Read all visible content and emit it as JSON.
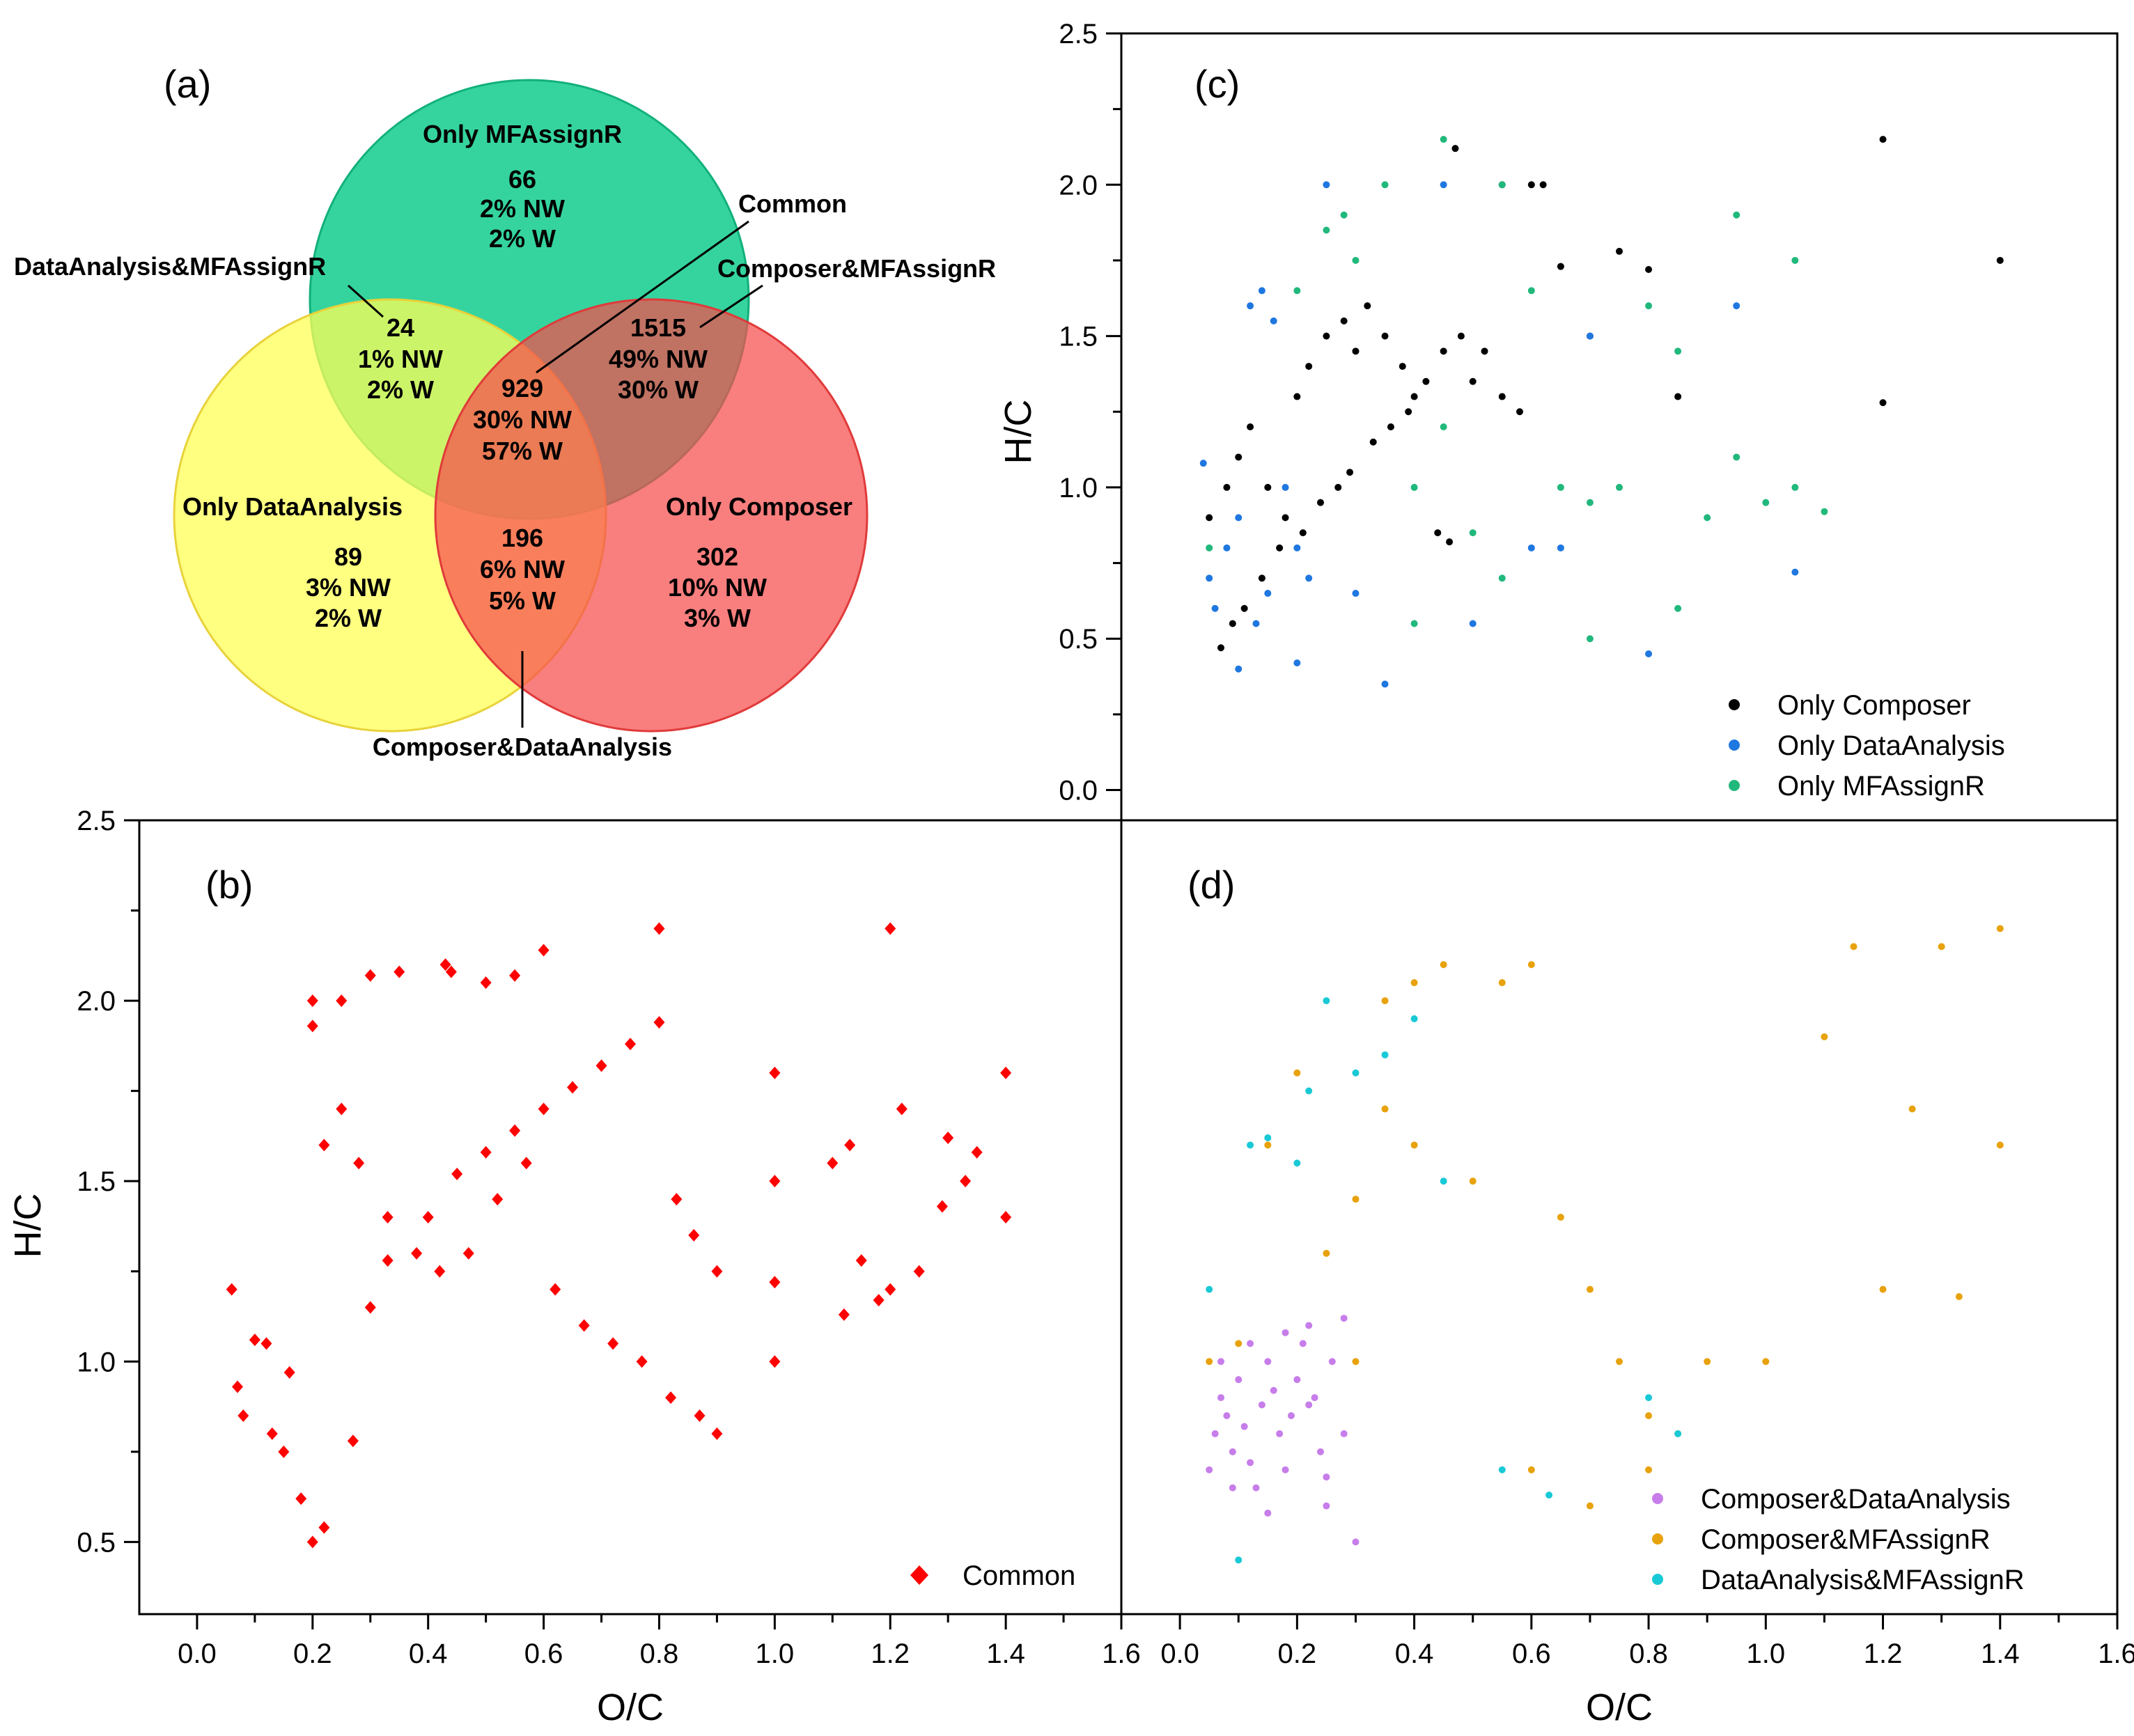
{
  "figure": {
    "panel_labels": [
      "(a)",
      "(b)",
      "(c)",
      "(d)"
    ],
    "x_axis_title": "O/C",
    "y_axis_title": "H/C"
  },
  "venn": {
    "circles": [
      {
        "name": "Only MFAssignR",
        "color": "#1fcf95"
      },
      {
        "name": "Only DataAnalysis",
        "color": "#ffff66"
      },
      {
        "name": "Only Composer",
        "color": "#f97474"
      }
    ],
    "regions": [
      {
        "key": "mf",
        "title": "Only MFAssignR",
        "count": "66",
        "nw": "2% NW",
        "w": "2% W"
      },
      {
        "key": "da_mf",
        "title": "DataAnalysis&MFAssignR",
        "count": "24",
        "nw": "1% NW",
        "w": "2% W"
      },
      {
        "key": "comp_mf",
        "title": "Composer&MFAssignR",
        "count": "1515",
        "nw": "49% NW",
        "w": "30% W"
      },
      {
        "key": "common",
        "title": "Common",
        "count": "929",
        "nw": "30% NW",
        "w": "57% W"
      },
      {
        "key": "da",
        "title": "Only DataAnalysis",
        "count": "89",
        "nw": "3% NW",
        "w": "2% W"
      },
      {
        "key": "comp_da",
        "title": "Composer&DataAnalysis",
        "count": "196",
        "nw": "6% NW",
        "w": "5% W"
      },
      {
        "key": "comp",
        "title": "Only Composer",
        "count": "302",
        "nw": "10% NW",
        "w": "3% W"
      }
    ]
  },
  "chart_data": [
    {
      "panel": "(b)",
      "type": "scatter",
      "xlabel": "O/C",
      "ylabel": "H/C",
      "xlim": [
        -0.1,
        1.6
      ],
      "ylim": [
        0.3,
        2.5
      ],
      "xticks": [
        "0.0",
        "0.2",
        "0.4",
        "0.6",
        "0.8",
        "1.0",
        "1.2",
        "1.4",
        "1.6"
      ],
      "yticks": [
        "0.5",
        "1.0",
        "1.5",
        "2.0",
        "2.5"
      ],
      "legend": "bottom-right",
      "series": [
        {
          "name": "Common",
          "color": "#ff0000",
          "marker": "diamond",
          "x": [
            0.06,
            0.07,
            0.08,
            0.12,
            0.15,
            0.18,
            0.2,
            0.22,
            0.13,
            0.16,
            0.1,
            0.27,
            0.3,
            0.33,
            0.4,
            0.45,
            0.5,
            0.55,
            0.6,
            0.65,
            0.7,
            0.75,
            0.8,
            0.83,
            0.86,
            0.9,
            1.0,
            1.0,
            1.0,
            1.0,
            1.12,
            1.15,
            1.18,
            1.2,
            1.25,
            1.29,
            1.33,
            1.4,
            1.2,
            0.8,
            0.6,
            0.55,
            0.5,
            0.44,
            0.43,
            0.35,
            0.3,
            0.25,
            0.2,
            0.2,
            0.22,
            0.25,
            0.28,
            0.33,
            0.38,
            0.42,
            0.47,
            0.52,
            0.57,
            0.62,
            0.67,
            0.72,
            0.77,
            0.82,
            0.87,
            0.9,
            1.1,
            1.13,
            1.22,
            1.3,
            1.35,
            1.4
          ],
          "y": [
            1.2,
            0.93,
            0.85,
            1.05,
            0.75,
            0.62,
            0.5,
            0.54,
            0.8,
            0.97,
            1.06,
            0.78,
            1.15,
            1.28,
            1.4,
            1.52,
            1.58,
            1.64,
            1.7,
            1.76,
            1.82,
            1.88,
            1.94,
            1.45,
            1.35,
            1.25,
            1.0,
            1.22,
            1.5,
            1.8,
            1.13,
            1.28,
            1.17,
            1.2,
            1.25,
            1.43,
            1.5,
            1.4,
            2.2,
            2.2,
            2.14,
            2.07,
            2.05,
            2.08,
            2.1,
            2.08,
            2.07,
            2.0,
            2.0,
            1.93,
            1.6,
            1.7,
            1.55,
            1.4,
            1.3,
            1.25,
            1.3,
            1.45,
            1.55,
            1.2,
            1.1,
            1.05,
            1.0,
            0.9,
            0.85,
            0.8,
            1.55,
            1.6,
            1.7,
            1.62,
            1.58,
            1.8
          ]
        }
      ]
    },
    {
      "panel": "(c)",
      "type": "scatter",
      "xlabel": "",
      "ylabel": "H/C",
      "xlim": [
        -0.1,
        1.6
      ],
      "ylim": [
        -0.1,
        2.5
      ],
      "yticks": [
        "0.0",
        "0.5",
        "1.0",
        "1.5",
        "2.0",
        "2.5"
      ],
      "legend": "bottom-right",
      "series": [
        {
          "name": "Only Composer",
          "color": "#000000",
          "x": [
            0.05,
            0.08,
            0.1,
            0.12,
            0.15,
            0.18,
            0.2,
            0.22,
            0.25,
            0.28,
            0.3,
            0.32,
            0.35,
            0.38,
            0.4,
            0.42,
            0.45,
            0.48,
            0.5,
            0.52,
            0.55,
            0.58,
            0.6,
            0.62,
            0.65,
            0.7,
            0.75,
            0.8,
            0.85,
            1.2,
            1.2,
            1.4,
            0.47,
            0.55,
            0.07,
            0.09,
            0.11,
            0.14,
            0.17,
            0.21,
            0.24,
            0.27,
            0.29,
            0.33,
            0.36,
            0.39,
            0.44,
            0.46
          ],
          "y": [
            0.9,
            1.0,
            1.1,
            1.2,
            1.0,
            0.9,
            1.3,
            1.4,
            1.5,
            1.55,
            1.45,
            1.6,
            1.5,
            1.4,
            1.3,
            1.35,
            1.45,
            1.5,
            1.35,
            1.45,
            1.3,
            1.25,
            2.0,
            2.0,
            1.73,
            1.5,
            1.78,
            1.72,
            1.3,
            2.15,
            1.28,
            1.75,
            2.12,
            2.0,
            0.47,
            0.55,
            0.6,
            0.7,
            0.8,
            0.85,
            0.95,
            1.0,
            1.05,
            1.15,
            1.2,
            1.25,
            0.85,
            0.82
          ]
        },
        {
          "name": "Only DataAnalysis",
          "color": "#1f77e0",
          "x": [
            0.04,
            0.05,
            0.06,
            0.08,
            0.1,
            0.12,
            0.14,
            0.16,
            0.18,
            0.2,
            0.22,
            0.15,
            0.13,
            0.3,
            0.35,
            0.45,
            0.5,
            0.6,
            0.65,
            0.7,
            0.8,
            0.95,
            1.05,
            0.25,
            0.2,
            0.1
          ],
          "y": [
            1.08,
            0.7,
            0.6,
            0.8,
            0.9,
            1.6,
            1.65,
            1.55,
            1.0,
            0.8,
            0.7,
            0.65,
            0.55,
            0.65,
            0.35,
            2.0,
            0.55,
            0.8,
            0.8,
            1.5,
            0.45,
            1.6,
            0.72,
            2.0,
            0.42,
            0.4
          ]
        },
        {
          "name": "Only MFAssignR",
          "color": "#21b87c",
          "x": [
            0.25,
            0.28,
            0.35,
            0.45,
            0.55,
            0.6,
            0.65,
            0.7,
            0.75,
            0.8,
            0.85,
            0.9,
            0.95,
            1.0,
            1.05,
            1.1,
            0.5,
            0.45,
            0.3,
            0.2,
            0.05,
            0.4,
            0.55,
            0.85,
            0.95,
            1.05,
            0.7,
            0.4
          ],
          "y": [
            1.85,
            1.9,
            2.0,
            2.15,
            2.0,
            1.65,
            1.0,
            0.95,
            1.0,
            1.6,
            0.6,
            0.9,
            1.9,
            0.95,
            1.75,
            0.92,
            0.85,
            1.2,
            1.75,
            1.65,
            0.8,
            0.55,
            0.7,
            1.45,
            1.1,
            1.0,
            0.5,
            1.0
          ]
        }
      ]
    },
    {
      "panel": "(d)",
      "type": "scatter",
      "xlabel": "O/C",
      "ylabel": "",
      "xlim": [
        -0.1,
        1.6
      ],
      "ylim": [
        0.3,
        2.5
      ],
      "xticks": [
        "0.0",
        "0.2",
        "0.4",
        "0.6",
        "0.8",
        "1.0",
        "1.2",
        "1.4",
        "1.6"
      ],
      "legend": "bottom-right",
      "series": [
        {
          "name": "Composer&DataAnalysis",
          "color": "#c77dea",
          "x": [
            0.05,
            0.06,
            0.07,
            0.08,
            0.09,
            0.1,
            0.11,
            0.12,
            0.13,
            0.14,
            0.15,
            0.16,
            0.17,
            0.18,
            0.19,
            0.2,
            0.21,
            0.22,
            0.23,
            0.24,
            0.25,
            0.26,
            0.28,
            0.3,
            0.07,
            0.09,
            0.12,
            0.15,
            0.18,
            0.22,
            0.25,
            0.28
          ],
          "y": [
            0.7,
            0.8,
            0.9,
            0.85,
            0.75,
            0.95,
            0.82,
            0.72,
            0.65,
            0.88,
            1.0,
            0.92,
            0.8,
            0.7,
            0.85,
            0.95,
            1.05,
            1.1,
            0.9,
            0.75,
            0.6,
            1.0,
            0.8,
            0.5,
            1.0,
            0.65,
            1.05,
            0.58,
            1.08,
            0.88,
            0.68,
            1.12
          ]
        },
        {
          "name": "Composer&MFAssignR",
          "color": "#e8a20c",
          "x": [
            0.05,
            0.1,
            0.15,
            0.2,
            0.25,
            0.3,
            0.35,
            0.4,
            0.45,
            0.5,
            0.55,
            0.6,
            0.65,
            0.7,
            0.75,
            0.8,
            0.85,
            0.9,
            1.0,
            1.1,
            1.15,
            1.2,
            1.3,
            1.4,
            1.4,
            1.33,
            1.25,
            0.3,
            0.35,
            0.4,
            0.6,
            0.7,
            0.8
          ],
          "y": [
            1.0,
            1.05,
            1.6,
            1.8,
            1.3,
            1.45,
            2.0,
            2.05,
            2.1,
            1.5,
            2.05,
            2.1,
            1.4,
            1.2,
            1.0,
            0.85,
            0.8,
            1.0,
            1.0,
            1.9,
            2.15,
            1.2,
            2.15,
            2.2,
            1.6,
            1.18,
            1.7,
            1.0,
            1.7,
            1.6,
            0.7,
            0.6,
            0.7
          ]
        },
        {
          "name": "DataAnalysis&MFAssignR",
          "color": "#19c9d6",
          "x": [
            0.05,
            0.1,
            0.12,
            0.15,
            0.2,
            0.22,
            0.25,
            0.3,
            0.35,
            0.4,
            0.45,
            0.55,
            0.63,
            0.8,
            0.85
          ],
          "y": [
            1.2,
            0.45,
            1.6,
            1.62,
            1.55,
            1.75,
            2.0,
            1.8,
            1.85,
            1.95,
            1.5,
            0.7,
            0.63,
            0.9,
            0.8
          ]
        }
      ]
    }
  ]
}
